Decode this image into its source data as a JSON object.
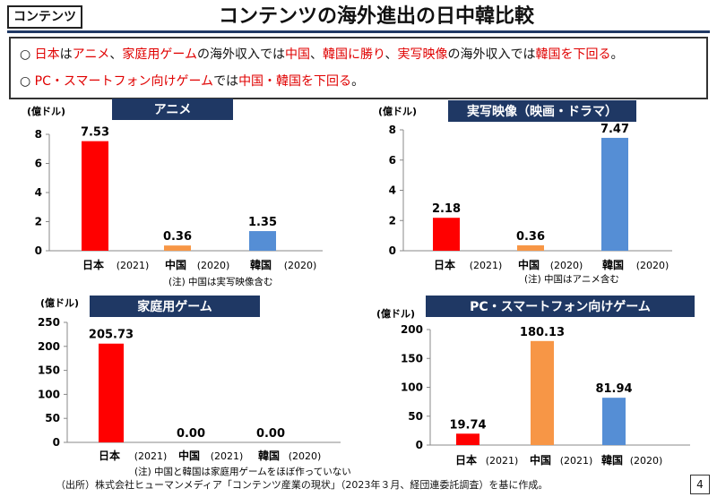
{
  "header": {
    "tag": "コンテンツ",
    "title": "コンテンツの海外進出の日中韓比較"
  },
  "bullets": [
    [
      {
        "t": "○ ",
        "red": false
      },
      {
        "t": "日本",
        "red": true
      },
      {
        "t": "は",
        "red": false
      },
      {
        "t": "アニメ",
        "red": true
      },
      {
        "t": "、",
        "red": false
      },
      {
        "t": "家庭用ゲーム",
        "red": true
      },
      {
        "t": "の海外収入では",
        "red": false
      },
      {
        "t": "中国",
        "red": true
      },
      {
        "t": "、",
        "red": false
      },
      {
        "t": "韓国に勝り",
        "red": true
      },
      {
        "t": "、",
        "red": false
      },
      {
        "t": "実写映像",
        "red": true
      },
      {
        "t": "の海外収入では",
        "red": false
      },
      {
        "t": "韓国",
        "red": true
      },
      {
        "t": "を下回る",
        "red": true
      },
      {
        "t": "。",
        "red": false
      }
    ],
    [
      {
        "t": "○ ",
        "red": false
      },
      {
        "t": "PC・スマートフォン向けゲーム",
        "red": true
      },
      {
        "t": "では",
        "red": false
      },
      {
        "t": "中国・韓国を下回る",
        "red": true
      },
      {
        "t": "。",
        "red": false
      }
    ]
  ],
  "colors": {
    "japan": "#ff0000",
    "china": "#f79646",
    "korea": "#558ed5",
    "title_box": "#1f3864"
  },
  "chart_data": [
    {
      "type": "bar",
      "title": "アニメ",
      "unit": "(億ドル)",
      "ylim": [
        0,
        8
      ],
      "yticks": [
        0,
        2,
        4,
        6,
        8
      ],
      "categories": [
        "日本",
        "中国",
        "韓国"
      ],
      "years": [
        "(2021)",
        "(2020)",
        "(2020)"
      ],
      "values": [
        7.53,
        0.36,
        1.35
      ],
      "labels": [
        "7.53",
        "0.36",
        "1.35"
      ],
      "note": "(注) 中国は実写映像含む"
    },
    {
      "type": "bar",
      "title": "実写映像（映画・ドラマ）",
      "unit": "(億ドル)",
      "ylim": [
        0,
        8
      ],
      "yticks": [
        0,
        2,
        4,
        6,
        8
      ],
      "categories": [
        "日本",
        "中国",
        "韓国"
      ],
      "years": [
        "(2021)",
        "(2020)",
        "(2020)"
      ],
      "values": [
        2.18,
        0.36,
        7.47
      ],
      "labels": [
        "2.18",
        "0.36",
        "7.47"
      ],
      "note": "(注) 中国はアニメ含む"
    },
    {
      "type": "bar",
      "title": "家庭用ゲーム",
      "unit": "(億ドル)",
      "ylim": [
        0,
        250
      ],
      "yticks": [
        0,
        50,
        100,
        150,
        200,
        250
      ],
      "categories": [
        "日本",
        "中国",
        "韓国"
      ],
      "years": [
        "(2021)",
        "(2021)",
        "(2020)"
      ],
      "values": [
        205.73,
        0.0,
        0.0
      ],
      "labels": [
        "205.73",
        "0.00",
        "0.00"
      ],
      "note": "(注) 中国と韓国は家庭用ゲームをほぼ作っていない"
    },
    {
      "type": "bar",
      "title": "PC・スマートフォン向けゲーム",
      "unit": "(億ドル)",
      "ylim": [
        0,
        200
      ],
      "yticks": [
        0,
        50,
        100,
        150,
        200
      ],
      "categories": [
        "日本",
        "中国",
        "韓国"
      ],
      "years": [
        "(2021)",
        "(2021)",
        "(2020)"
      ],
      "values": [
        19.74,
        180.13,
        81.94
      ],
      "labels": [
        "19.74",
        "180.13",
        "81.94"
      ],
      "note": ""
    }
  ],
  "footer": {
    "source": "（出所）株式会社ヒューマンメディア「コンテンツ産業の現状」（2023年３月、経団連委託調査）を基に作成。",
    "page": "4"
  }
}
